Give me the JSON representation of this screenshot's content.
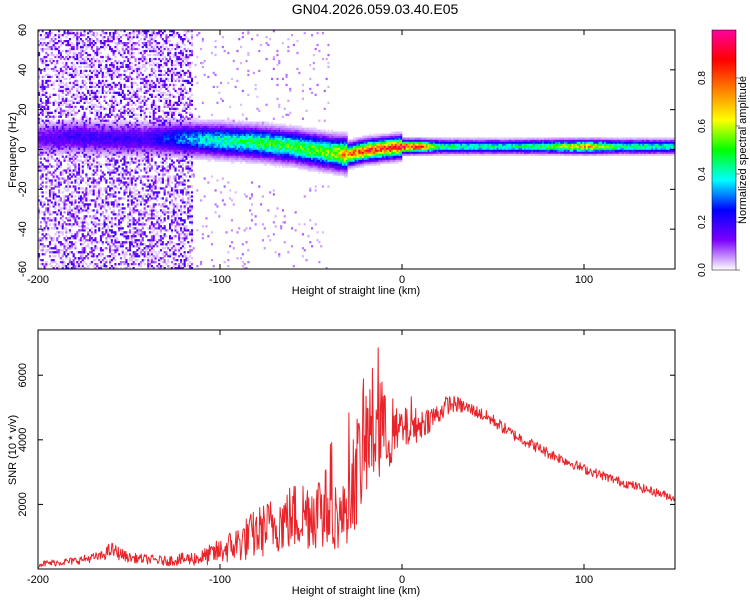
{
  "figure": {
    "title": "GN04.2026.059.03.40.E05"
  },
  "chart_data": [
    {
      "type": "heatmap",
      "title": "GN04.2026.059.03.40.E05",
      "xlabel": "Height of straight line (km)",
      "ylabel": "Frequency (Hz)",
      "xlim": [
        -200,
        150
      ],
      "ylim": [
        -60,
        60
      ],
      "xticks": [
        -200,
        -100,
        0,
        100
      ],
      "yticks": [
        -60,
        -40,
        -20,
        0,
        20,
        40,
        60
      ],
      "colorbar": {
        "label": "Normalized spectral amplitude",
        "range": [
          0,
          1
        ],
        "ticks": [
          "0.0",
          "0.2",
          "0.4",
          "0.6",
          "0.8"
        ],
        "colors": [
          "#ffffff",
          "#7b00ff",
          "#0000ff",
          "#00ffff",
          "#00ff00",
          "#ffff00",
          "#ff8000",
          "#ff0000",
          "#ff00a0"
        ]
      },
      "ridge": {
        "description_points_x": [
          -200,
          -180,
          -160,
          -140,
          -120,
          -100,
          -80,
          -60,
          -40,
          -30,
          -20,
          -10,
          0,
          10,
          20,
          40,
          60,
          80,
          100,
          120,
          150
        ],
        "frequency_hz": [
          5,
          6,
          5,
          5,
          5,
          4,
          3,
          1,
          -2,
          -3,
          -1,
          0,
          1,
          1,
          1,
          1,
          1,
          1,
          1,
          1,
          1
        ],
        "peak_amplitude": [
          0.15,
          0.2,
          0.2,
          0.2,
          0.35,
          0.45,
          0.5,
          0.55,
          0.6,
          0.8,
          0.9,
          0.9,
          0.95,
          0.85,
          0.5,
          0.45,
          0.45,
          0.55,
          0.75,
          0.5,
          0.45
        ]
      },
      "noise_region_x": [
        -200,
        -115
      ]
    },
    {
      "type": "line",
      "title": "",
      "xlabel": "Height of straight line (km)",
      "ylabel": "SNR (10 * v/v)",
      "xlim": [
        -200,
        150
      ],
      "ylim": [
        0,
        7400
      ],
      "xticks": [
        -200,
        -100,
        0,
        100
      ],
      "yticks": [
        2000,
        4000,
        6000
      ],
      "series": [
        {
          "name": "SNR",
          "color": "#e8242a",
          "x": [
            -200,
            -180,
            -165,
            -160,
            -150,
            -130,
            -110,
            -100,
            -90,
            -80,
            -70,
            -60,
            -50,
            -40,
            -33,
            -30,
            -25,
            -20,
            -15,
            -12,
            -10,
            -5,
            0,
            10,
            20,
            25,
            30,
            40,
            50,
            60,
            80,
            100,
            120,
            150
          ],
          "y": [
            150,
            250,
            400,
            600,
            350,
            250,
            350,
            550,
            800,
            1100,
            1400,
            1600,
            1800,
            1900,
            1500,
            2200,
            3000,
            3900,
            4500,
            5000,
            4200,
            4100,
            4300,
            4500,
            4800,
            5100,
            5100,
            4900,
            4600,
            4200,
            3600,
            3100,
            2700,
            2200
          ],
          "noise_amplitude": [
            100,
            120,
            150,
            250,
            150,
            150,
            250,
            400,
            600,
            800,
            900,
            1100,
            1200,
            1300,
            900,
            1400,
            1700,
            1900,
            2000,
            2200,
            1300,
            900,
            700,
            500,
            350,
            300,
            250,
            200,
            200,
            180,
            170,
            150,
            140,
            130
          ]
        }
      ]
    }
  ]
}
